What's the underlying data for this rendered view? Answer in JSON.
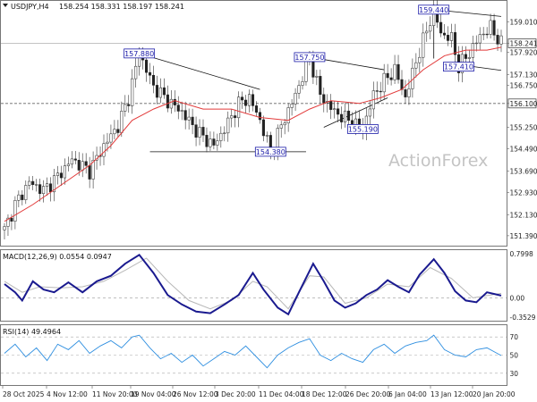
{
  "chart_data": {
    "type": "candlestick",
    "symbol_header": "USDJPY,H4",
    "ohlc_header": "158.254 158.331 158.197 158.241",
    "watermark": "ActionForex",
    "current_price_label": "158.241",
    "support_level_label": "156.100",
    "price_axis_ticks": [
      "159.010",
      "158.241",
      "157.130",
      "156.100",
      "155.250",
      "154.490",
      "153.690",
      "152.930",
      "152.130",
      "151.390"
    ],
    "price_axis_tick_values": [
      159.01,
      158.241,
      157.13,
      156.1,
      155.25,
      154.49,
      153.69,
      152.93,
      152.13,
      151.39
    ],
    "price_axis_ticks_extra": [
      "156.750",
      "157.920"
    ],
    "price_axis_ticks_extra_values": [
      156.75,
      157.92
    ],
    "ylim": [
      151.1,
      159.72
    ],
    "time_axis_labels": [
      "28 Oct 2025",
      "4 Nov 12:00",
      "11 Nov 20:00",
      "19 Nov 04:00",
      "26 Nov 12:00",
      "3 Dec 20:00",
      "11 Dec 04:00",
      "18 Dec 12:00",
      "26 Dec 20:00",
      "6 Jan 04:00",
      "13 Jan 12:00",
      "20 Jan 20:00"
    ],
    "annotations": [
      {
        "label": "157.880",
        "value": 157.88,
        "bar": 38
      },
      {
        "label": "154.380",
        "value": 154.38,
        "bar": 75
      },
      {
        "label": "157.750",
        "value": 157.75,
        "bar": 86
      },
      {
        "label": "155.190",
        "value": 155.19,
        "bar": 101
      },
      {
        "label": "159.440",
        "value": 159.44,
        "bar": 121
      },
      {
        "label": "157.410",
        "value": 157.41,
        "bar": 128
      }
    ],
    "path": [
      [
        0,
        151.6
      ],
      [
        3,
        152.5
      ],
      [
        7,
        153.3
      ],
      [
        11,
        153.0
      ],
      [
        15,
        153.5
      ],
      [
        19,
        154.1
      ],
      [
        24,
        153.7
      ],
      [
        28,
        154.6
      ],
      [
        32,
        155.3
      ],
      [
        35,
        156.3
      ],
      [
        38,
        157.88
      ],
      [
        42,
        156.7
      ],
      [
        46,
        156.2
      ],
      [
        50,
        155.8
      ],
      [
        53,
        155.3
      ],
      [
        56,
        154.9
      ],
      [
        59,
        154.6
      ],
      [
        63,
        155.4
      ],
      [
        66,
        156.1
      ],
      [
        69,
        156.3
      ],
      [
        72,
        155.5
      ],
      [
        75,
        154.38
      ],
      [
        78,
        155.3
      ],
      [
        82,
        156.4
      ],
      [
        86,
        157.75
      ],
      [
        89,
        156.4
      ],
      [
        93,
        155.8
      ],
      [
        97,
        155.5
      ],
      [
        101,
        155.19
      ],
      [
        104,
        156.4
      ],
      [
        107,
        156.9
      ],
      [
        110,
        157.3
      ],
      [
        113,
        156.3
      ],
      [
        116,
        157.6
      ],
      [
        119,
        158.7
      ],
      [
        121,
        159.44
      ],
      [
        123,
        158.6
      ],
      [
        126,
        158.4
      ],
      [
        128,
        157.41
      ],
      [
        131,
        157.9
      ],
      [
        134,
        158.5
      ],
      [
        137,
        158.8
      ],
      [
        140,
        158.241
      ]
    ],
    "moving_average": {
      "label": "MA",
      "path": [
        [
          0,
          151.9
        ],
        [
          8,
          152.5
        ],
        [
          16,
          153.2
        ],
        [
          24,
          153.9
        ],
        [
          30,
          154.6
        ],
        [
          36,
          155.5
        ],
        [
          42,
          155.9
        ],
        [
          48,
          156.2
        ],
        [
          56,
          155.9
        ],
        [
          64,
          155.9
        ],
        [
          72,
          155.6
        ],
        [
          80,
          155.5
        ],
        [
          86,
          155.9
        ],
        [
          92,
          156.2
        ],
        [
          100,
          156.1
        ],
        [
          106,
          156.3
        ],
        [
          112,
          156.6
        ],
        [
          118,
          157.3
        ],
        [
          124,
          157.8
        ],
        [
          130,
          158.0
        ],
        [
          136,
          158.0
        ],
        [
          140,
          158.1
        ]
      ]
    },
    "macd": {
      "label": "MACD(12,26,9) 0.0554 0.0947",
      "ticks": [
        "0.7998",
        "0.00",
        "-0.3529"
      ],
      "tick_values": [
        0.7998,
        0.0,
        -0.3529
      ],
      "ylim": [
        -0.4,
        0.85
      ],
      "macd_path": [
        [
          0,
          0.25
        ],
        [
          3,
          0.1
        ],
        [
          5,
          -0.05
        ],
        [
          8,
          0.3
        ],
        [
          11,
          0.15
        ],
        [
          14,
          0.1
        ],
        [
          18,
          0.28
        ],
        [
          22,
          0.1
        ],
        [
          26,
          0.3
        ],
        [
          30,
          0.4
        ],
        [
          34,
          0.62
        ],
        [
          38,
          0.78
        ],
        [
          42,
          0.45
        ],
        [
          46,
          0.05
        ],
        [
          50,
          -0.12
        ],
        [
          54,
          -0.25
        ],
        [
          58,
          -0.28
        ],
        [
          62,
          -0.12
        ],
        [
          66,
          0.05
        ],
        [
          70,
          0.45
        ],
        [
          73,
          0.15
        ],
        [
          77,
          -0.18
        ],
        [
          80,
          -0.3
        ],
        [
          83,
          0.1
        ],
        [
          87,
          0.62
        ],
        [
          90,
          0.3
        ],
        [
          93,
          -0.05
        ],
        [
          96,
          -0.18
        ],
        [
          99,
          -0.1
        ],
        [
          102,
          0.05
        ],
        [
          105,
          0.15
        ],
        [
          108,
          0.32
        ],
        [
          111,
          0.2
        ],
        [
          114,
          0.1
        ],
        [
          117,
          0.42
        ],
        [
          121,
          0.7
        ],
        [
          124,
          0.45
        ],
        [
          127,
          0.12
        ],
        [
          130,
          -0.05
        ],
        [
          133,
          -0.08
        ],
        [
          136,
          0.1
        ],
        [
          140,
          0.04
        ]
      ],
      "signal_path": [
        [
          0,
          0.3
        ],
        [
          5,
          0.1
        ],
        [
          10,
          0.2
        ],
        [
          16,
          0.18
        ],
        [
          22,
          0.2
        ],
        [
          28,
          0.3
        ],
        [
          34,
          0.5
        ],
        [
          40,
          0.72
        ],
        [
          46,
          0.3
        ],
        [
          52,
          -0.05
        ],
        [
          58,
          -0.2
        ],
        [
          64,
          -0.05
        ],
        [
          70,
          0.3
        ],
        [
          74,
          0.2
        ],
        [
          80,
          -0.2
        ],
        [
          86,
          0.4
        ],
        [
          90,
          0.38
        ],
        [
          96,
          -0.1
        ],
        [
          102,
          0.0
        ],
        [
          108,
          0.25
        ],
        [
          114,
          0.2
        ],
        [
          120,
          0.55
        ],
        [
          126,
          0.35
        ],
        [
          132,
          0.0
        ],
        [
          140,
          0.08
        ]
      ]
    },
    "rsi": {
      "label": "RSI(14) 49.4964",
      "ticks": [
        "70",
        "50",
        "30"
      ],
      "tick_values": [
        70,
        50,
        30
      ],
      "ylim": [
        18,
        82
      ],
      "path": [
        [
          0,
          52
        ],
        [
          3,
          62
        ],
        [
          6,
          48
        ],
        [
          9,
          58
        ],
        [
          12,
          44
        ],
        [
          15,
          62
        ],
        [
          18,
          56
        ],
        [
          21,
          66
        ],
        [
          24,
          52
        ],
        [
          27,
          60
        ],
        [
          30,
          66
        ],
        [
          33,
          58
        ],
        [
          36,
          70
        ],
        [
          38,
          72
        ],
        [
          41,
          58
        ],
        [
          44,
          46
        ],
        [
          47,
          52
        ],
        [
          50,
          42
        ],
        [
          53,
          50
        ],
        [
          56,
          38
        ],
        [
          59,
          46
        ],
        [
          62,
          54
        ],
        [
          65,
          50
        ],
        [
          68,
          60
        ],
        [
          71,
          48
        ],
        [
          74,
          36
        ],
        [
          77,
          50
        ],
        [
          80,
          58
        ],
        [
          83,
          64
        ],
        [
          86,
          68
        ],
        [
          89,
          50
        ],
        [
          92,
          44
        ],
        [
          95,
          52
        ],
        [
          98,
          46
        ],
        [
          101,
          42
        ],
        [
          104,
          56
        ],
        [
          107,
          62
        ],
        [
          110,
          52
        ],
        [
          113,
          60
        ],
        [
          116,
          64
        ],
        [
          119,
          66
        ],
        [
          121,
          72
        ],
        [
          124,
          56
        ],
        [
          127,
          50
        ],
        [
          130,
          48
        ],
        [
          133,
          56
        ],
        [
          136,
          58
        ],
        [
          140,
          49.5
        ]
      ]
    }
  }
}
